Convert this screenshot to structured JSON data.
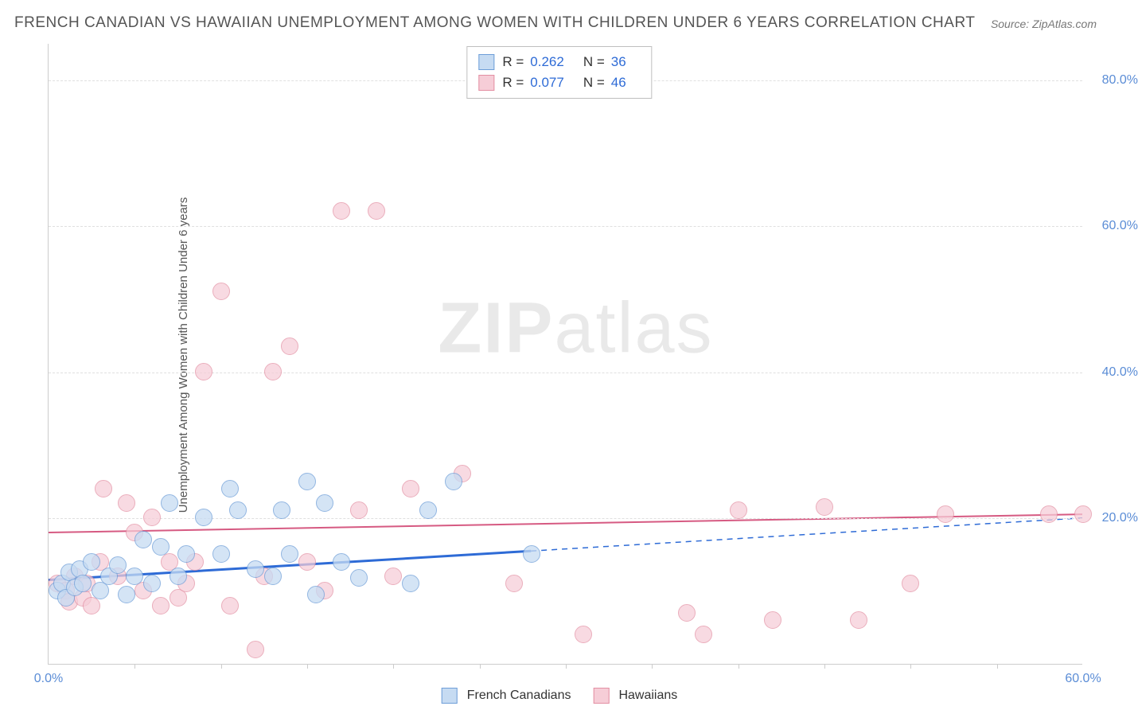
{
  "title": "FRENCH CANADIAN VS HAWAIIAN UNEMPLOYMENT AMONG WOMEN WITH CHILDREN UNDER 6 YEARS CORRELATION CHART",
  "source": "Source: ZipAtlas.com",
  "watermark_bold": "ZIP",
  "watermark_rest": "atlas",
  "y_axis_label": "Unemployment Among Women with Children Under 6 years",
  "axes": {
    "xlim": [
      0,
      60
    ],
    "ylim": [
      0,
      85
    ],
    "x_ticks": [
      0,
      60
    ],
    "x_minor_ticks": [
      5,
      10,
      15,
      20,
      25,
      30,
      35,
      40,
      45,
      50,
      55
    ],
    "y_ticks": [
      20,
      40,
      60,
      80
    ],
    "x_tick_labels": [
      "0.0%",
      "60.0%"
    ],
    "y_tick_labels": [
      "20.0%",
      "40.0%",
      "60.0%",
      "80.0%"
    ],
    "grid_color": "#e0e0e0",
    "axis_color": "#cccccc"
  },
  "series": {
    "french_canadians": {
      "label": "French Canadians",
      "fill": "#c6dbf2",
      "stroke": "#6e9ed8",
      "marker_radius": 11,
      "marker_opacity": 0.75,
      "R_label": "R =",
      "R": "0.262",
      "N_label": "N =",
      "N": "36",
      "trend": {
        "start": [
          0,
          11.5
        ],
        "end": [
          60,
          20.0
        ],
        "solid_until_x": 28,
        "color": "#2e6bd6",
        "width": 3
      },
      "points": [
        [
          0.5,
          10
        ],
        [
          0.8,
          11
        ],
        [
          1,
          9
        ],
        [
          1.2,
          12.5
        ],
        [
          1.5,
          10.5
        ],
        [
          1.8,
          13
        ],
        [
          2,
          11
        ],
        [
          2.5,
          14
        ],
        [
          3,
          10
        ],
        [
          3.5,
          12
        ],
        [
          4,
          13.5
        ],
        [
          4.5,
          9.5
        ],
        [
          5,
          12
        ],
        [
          5.5,
          17
        ],
        [
          6,
          11
        ],
        [
          6.5,
          16
        ],
        [
          7,
          22
        ],
        [
          7.5,
          12
        ],
        [
          8,
          15
        ],
        [
          9,
          20
        ],
        [
          10,
          15
        ],
        [
          10.5,
          24
        ],
        [
          11,
          21
        ],
        [
          12,
          13
        ],
        [
          13,
          12
        ],
        [
          13.5,
          21
        ],
        [
          14,
          15
        ],
        [
          15,
          25
        ],
        [
          15.5,
          9.5
        ],
        [
          16,
          22
        ],
        [
          17,
          14
        ],
        [
          18,
          11.8
        ],
        [
          21,
          11
        ],
        [
          22,
          21
        ],
        [
          23.5,
          25
        ],
        [
          28,
          15
        ]
      ]
    },
    "hawaiians": {
      "label": "Hawaiians",
      "fill": "#f6cdd7",
      "stroke": "#e38fa3",
      "marker_radius": 11,
      "marker_opacity": 0.72,
      "R_label": "R =",
      "R": "0.077",
      "N_label": "N =",
      "N": "46",
      "trend": {
        "start": [
          0,
          18
        ],
        "end": [
          60,
          20.5
        ],
        "solid_until_x": 60,
        "color": "#d65a82",
        "width": 2
      },
      "points": [
        [
          0.5,
          11
        ],
        [
          1,
          10
        ],
        [
          1.2,
          8.5
        ],
        [
          1.5,
          12
        ],
        [
          2,
          9
        ],
        [
          2.2,
          11
        ],
        [
          2.5,
          8
        ],
        [
          3,
          14
        ],
        [
          3.2,
          24
        ],
        [
          4,
          12
        ],
        [
          4.5,
          22
        ],
        [
          5,
          18
        ],
        [
          5.5,
          10
        ],
        [
          6,
          20
        ],
        [
          6.5,
          8
        ],
        [
          7,
          14
        ],
        [
          7.5,
          9
        ],
        [
          8,
          11
        ],
        [
          8.5,
          14
        ],
        [
          9,
          40
        ],
        [
          10,
          51
        ],
        [
          10.5,
          8
        ],
        [
          12,
          2
        ],
        [
          12.5,
          12
        ],
        [
          13,
          40
        ],
        [
          14,
          43.5
        ],
        [
          15,
          14
        ],
        [
          16,
          10
        ],
        [
          17,
          62
        ],
        [
          18,
          21
        ],
        [
          19,
          62
        ],
        [
          20,
          12
        ],
        [
          21,
          24
        ],
        [
          24,
          26
        ],
        [
          27,
          11
        ],
        [
          31,
          4
        ],
        [
          37,
          7
        ],
        [
          38,
          4
        ],
        [
          40,
          21
        ],
        [
          42,
          6
        ],
        [
          45,
          21.5
        ],
        [
          47,
          6
        ],
        [
          50,
          11
        ],
        [
          52,
          20.5
        ],
        [
          58,
          20.5
        ],
        [
          60,
          20.5
        ]
      ]
    }
  },
  "typography": {
    "title_fontsize": 19,
    "title_color": "#555555",
    "source_fontsize": 14,
    "source_color": "#777777",
    "axis_label_fontsize": 15,
    "tick_label_fontsize": 16,
    "tick_label_color": "#5b8dd6",
    "legend_fontsize": 17,
    "watermark_fontsize": 90,
    "watermark_color": "#bcbcbc"
  },
  "background_color": "#ffffff"
}
